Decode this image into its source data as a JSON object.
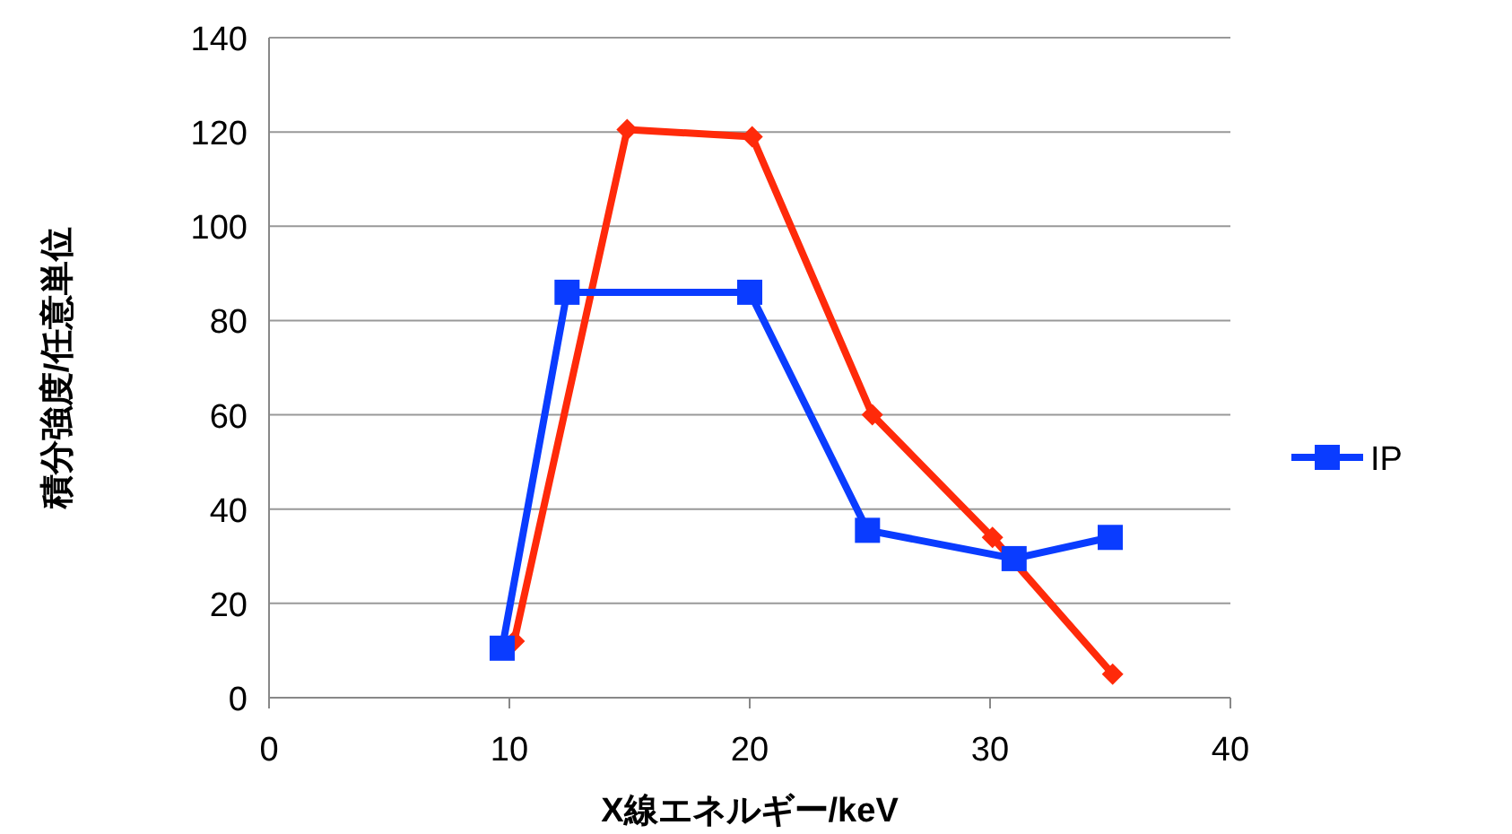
{
  "chart_data": {
    "type": "line",
    "xlabel": "X線エネルギー/keV",
    "ylabel": "積分強度/任意単位",
    "xlim": [
      0,
      40
    ],
    "xticks": [
      0,
      10,
      20,
      30,
      40
    ],
    "ylim": [
      0,
      140
    ],
    "yticks": [
      0,
      20,
      40,
      60,
      80,
      100,
      120,
      140
    ],
    "grid": "y",
    "legend": "right",
    "line_style": "solid",
    "series": [
      {
        "color": "#ff2a0a",
        "marker": "diamond",
        "x": [
          10.2,
          14.9,
          20.1,
          25.1,
          30.1,
          35.1
        ],
        "values": [
          12,
          120.5,
          119,
          60,
          34,
          5
        ]
      },
      {
        "name": "IP",
        "color": "#0a3cff",
        "marker": "square",
        "x": [
          9.7,
          12.4,
          20,
          24.9,
          31,
          35
        ],
        "values": [
          10.5,
          86,
          86,
          35.5,
          29.5,
          34
        ]
      }
    ]
  }
}
